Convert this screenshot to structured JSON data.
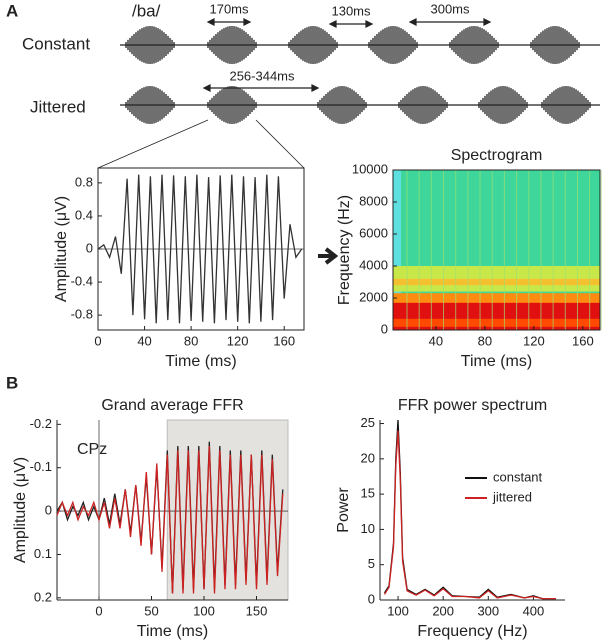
{
  "panels": {
    "a": "A",
    "b": "B"
  },
  "stimulus": {
    "syllable": "/ba/",
    "rows": [
      "Constant",
      "Jittered"
    ],
    "intervals": [
      "170ms",
      "130ms",
      "300ms",
      "256-344ms"
    ]
  },
  "chart_data": [
    {
      "type": "line",
      "xlabel": "Time (ms)",
      "ylabel": "Amplitude (μV)",
      "x": [
        0,
        5,
        10,
        15,
        20,
        25,
        30,
        35,
        40,
        45,
        50,
        55,
        60,
        65,
        70,
        75,
        80,
        85,
        90,
        95,
        100,
        105,
        110,
        115,
        120,
        125,
        130,
        135,
        140,
        145,
        150,
        155,
        160,
        165,
        170,
        175
      ],
      "series": [
        {
          "color": "#333333",
          "values": [
            0,
            0.05,
            -0.1,
            0.15,
            -0.3,
            0.85,
            -0.8,
            0.9,
            -0.85,
            0.88,
            -0.9,
            0.9,
            -0.86,
            0.89,
            -0.9,
            0.88,
            -0.87,
            0.9,
            -0.88,
            0.87,
            -0.9,
            0.89,
            -0.86,
            0.9,
            -0.88,
            0.88,
            -0.9,
            0.87,
            -0.88,
            0.9,
            -0.86,
            0.88,
            -0.6,
            0.3,
            -0.1,
            0
          ]
        }
      ],
      "xlim": [
        0,
        177
      ],
      "ylim": [
        -0.98,
        0.98
      ],
      "xticks": [
        0,
        40,
        80,
        120,
        160
      ],
      "yticks": [
        0.8,
        0.4,
        0,
        -0.4,
        -0.8
      ]
    },
    {
      "type": "spectrogram",
      "title": "Spectrogram",
      "xlabel": "Time (ms)",
      "ylabel": "Frequency (Hz)",
      "xlim": [
        5,
        174
      ],
      "ylim": [
        0,
        10000
      ],
      "xticks": [
        40,
        80,
        120,
        160
      ],
      "yticks": [
        0,
        2000,
        4000,
        6000,
        8000,
        10000
      ]
    },
    {
      "type": "line",
      "title": "Grand average FFR",
      "annotation": "CPz",
      "xlabel": "Time (ms)",
      "ylabel": "Amplitude (μV)",
      "invert_y": true,
      "shaded_region": [
        65,
        180
      ],
      "x": [
        -40,
        -35,
        -30,
        -25,
        -20,
        -15,
        -10,
        -5,
        0,
        5,
        10,
        15,
        20,
        25,
        30,
        35,
        40,
        45,
        50,
        55,
        60,
        65,
        70,
        75,
        80,
        85,
        90,
        95,
        100,
        105,
        110,
        115,
        120,
        125,
        130,
        135,
        140,
        145,
        150,
        155,
        160,
        165,
        170,
        175
      ],
      "series": [
        {
          "color": "#222222",
          "values": [
            0,
            -0.02,
            0.02,
            -0.01,
            0.01,
            -0.02,
            0.02,
            -0.01,
            0.02,
            -0.03,
            0.03,
            -0.04,
            0.03,
            -0.05,
            0.05,
            -0.06,
            0.07,
            -0.08,
            0.1,
            -0.1,
            0.13,
            -0.14,
            0.19,
            -0.15,
            0.18,
            -0.15,
            0.18,
            -0.15,
            0.18,
            -0.16,
            0.18,
            -0.15,
            0.17,
            -0.14,
            0.17,
            -0.14,
            0.16,
            -0.13,
            0.17,
            -0.14,
            0.16,
            -0.13,
            0.14,
            -0.05
          ]
        },
        {
          "color": "#cc2222",
          "values": [
            0.01,
            -0.02,
            0.01,
            -0.02,
            0.02,
            -0.01,
            0.01,
            -0.02,
            0.02,
            -0.02,
            0.04,
            -0.03,
            0.04,
            -0.05,
            0.06,
            -0.06,
            0.08,
            -0.09,
            0.1,
            -0.11,
            0.14,
            -0.13,
            0.19,
            -0.14,
            0.19,
            -0.14,
            0.19,
            -0.14,
            0.18,
            -0.15,
            0.19,
            -0.14,
            0.18,
            -0.13,
            0.18,
            -0.13,
            0.17,
            -0.13,
            0.18,
            -0.13,
            0.17,
            -0.12,
            0.15,
            -0.04
          ]
        }
      ],
      "xlim": [
        -40,
        180
      ],
      "ylim": [
        -0.21,
        0.205
      ],
      "xticks": [
        0,
        50,
        100,
        150
      ],
      "yticks": [
        -0.2,
        -0.1,
        0,
        0.1,
        0.2
      ]
    },
    {
      "type": "line",
      "title": "FFR power spectrum",
      "xlabel": "Frequency (Hz)",
      "ylabel": "Power",
      "legend": "upper right",
      "x": [
        70,
        80,
        90,
        95,
        100,
        105,
        110,
        120,
        140,
        160,
        180,
        200,
        220,
        250,
        280,
        300,
        320,
        350,
        380,
        400,
        420,
        450
      ],
      "series": [
        {
          "name": "constant",
          "color": "#111111",
          "values": [
            1,
            2,
            8,
            20,
            25.5,
            18,
            6,
            1.5,
            0.8,
            1.5,
            0.7,
            1.8,
            0.6,
            0.5,
            0.4,
            1.5,
            0.4,
            0.8,
            0.3,
            0.6,
            0.2,
            0.2
          ]
        },
        {
          "name": "jittered",
          "color": "#cc2222",
          "values": [
            0.8,
            1.8,
            7.5,
            19,
            24,
            17,
            5.5,
            1.3,
            0.7,
            1.4,
            0.6,
            1.6,
            0.5,
            0.5,
            0.3,
            1.3,
            0.3,
            0.7,
            0.3,
            0.5,
            0.2,
            0.2
          ]
        }
      ],
      "xlim": [
        60,
        470
      ],
      "ylim": [
        0,
        25.5
      ],
      "xticks": [
        100,
        200,
        300,
        400
      ],
      "yticks": [
        0,
        5,
        10,
        15,
        20,
        25
      ]
    }
  ]
}
